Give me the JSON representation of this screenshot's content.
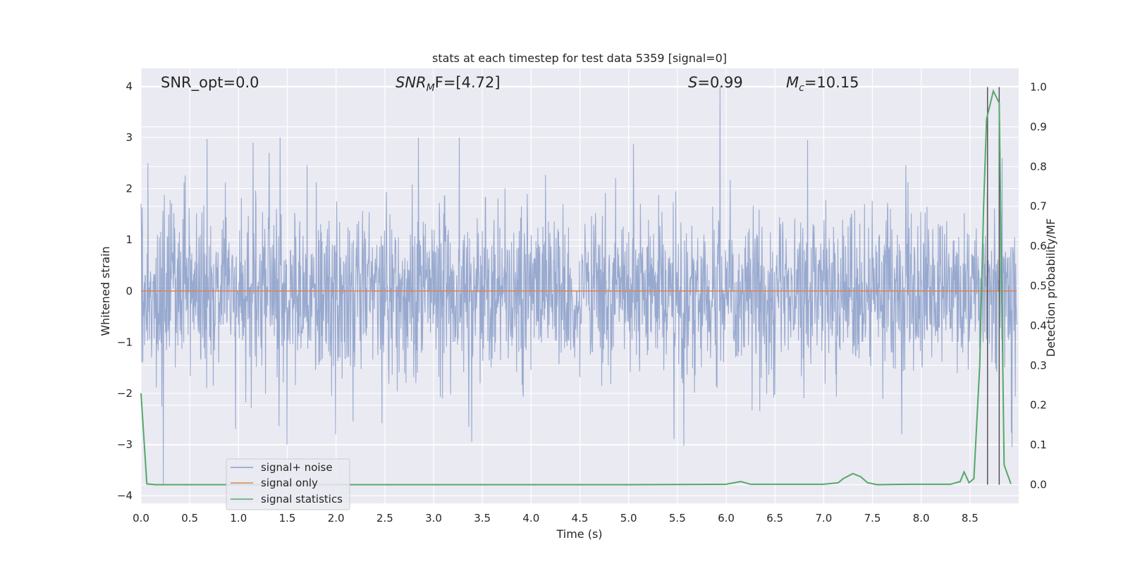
{
  "chart_data": {
    "type": "line",
    "title": "stats at each timestep for test data 5359 [signal=0]",
    "xlabel": "Time (s)",
    "ylabel_left": "Whitened strain",
    "ylabel_right": "Detection probability/MF",
    "xlim": [
      0.0,
      9.0
    ],
    "ylim_left": [
      -4.15,
      4.35
    ],
    "ylim_right": [
      -0.047,
      1.047
    ],
    "grid": true,
    "x_ticks": [
      "0.0",
      "0.5",
      "1.0",
      "1.5",
      "2.0",
      "2.5",
      "3.0",
      "3.5",
      "4.0",
      "4.5",
      "5.0",
      "5.5",
      "6.0",
      "6.5",
      "7.0",
      "7.5",
      "8.0",
      "8.5"
    ],
    "y_ticks_left": [
      "4",
      "3",
      "2",
      "1",
      "0",
      "−1",
      "−2",
      "−3",
      "−4"
    ],
    "y_ticks_right": [
      "1.0",
      "0.9",
      "0.8",
      "0.7",
      "0.6",
      "0.5",
      "0.4",
      "0.3",
      "0.2",
      "0.1",
      "0.0"
    ],
    "annotations": {
      "snr_opt": "SNR_opt=0.0",
      "snr_mf_label": "SNR",
      "snr_mf_sub": "M",
      "snr_mf_suffix": "F=[4.72]",
      "s_label": "S",
      "s_value": "=0.99",
      "mc_label": "M",
      "mc_sub": "c",
      "mc_value": "=10.15"
    },
    "vertical_lines_x": [
      8.68,
      8.8
    ],
    "series": [
      {
        "name": "signal+ noise",
        "color": "#8a9dc9",
        "description": "whitened strain noise, approx. Gaussian with sigma ~0.8, spikes up to 4.0 near t=5.96",
        "sigma": 0.8,
        "peaks": [
          [
            0.07,
            2.5
          ],
          [
            0.23,
            -3.8
          ],
          [
            0.68,
            2.97
          ],
          [
            0.97,
            -2.7
          ],
          [
            1.15,
            2.9
          ],
          [
            1.43,
            3.0
          ],
          [
            1.5,
            -3.0
          ],
          [
            2.0,
            -2.8
          ],
          [
            2.18,
            -2.55
          ],
          [
            2.85,
            3.0
          ],
          [
            3.1,
            -2.1
          ],
          [
            3.27,
            3.0
          ],
          [
            3.4,
            -2.95
          ],
          [
            5.06,
            2.87
          ],
          [
            5.58,
            -3.02
          ],
          [
            5.95,
            4.0
          ],
          [
            6.36,
            -2.35
          ],
          [
            6.85,
            2.95
          ],
          [
            7.82,
            -2.8
          ],
          [
            8.85,
            2.6
          ],
          [
            8.95,
            -3.05
          ]
        ]
      },
      {
        "name": "signal only",
        "color": "#dd8452",
        "values_constant": 0
      },
      {
        "name": "signal statistics",
        "color": "#55a868",
        "axis": "right",
        "x": [
          0.0,
          0.06,
          0.15,
          1.0,
          2.0,
          3.0,
          4.0,
          5.0,
          6.0,
          6.15,
          6.25,
          7.0,
          7.15,
          7.2,
          7.3,
          7.38,
          7.45,
          7.55,
          7.9,
          8.3,
          8.4,
          8.44,
          8.49,
          8.54,
          8.6,
          8.64,
          8.67,
          8.74,
          8.8,
          8.85,
          8.92
        ],
        "y": [
          0.23,
          0.002,
          0.0,
          0.0,
          0.0,
          0.0,
          0.0,
          0.0,
          0.001,
          0.008,
          0.001,
          0.001,
          0.005,
          0.015,
          0.028,
          0.02,
          0.005,
          0.0,
          0.001,
          0.001,
          0.008,
          0.032,
          0.005,
          0.015,
          0.3,
          0.7,
          0.92,
          0.99,
          0.96,
          0.05,
          0.002
        ]
      }
    ],
    "legend": {
      "position": "lower-left",
      "entries": [
        "signal+ noise",
        "signal only",
        "signal statistics"
      ]
    }
  }
}
